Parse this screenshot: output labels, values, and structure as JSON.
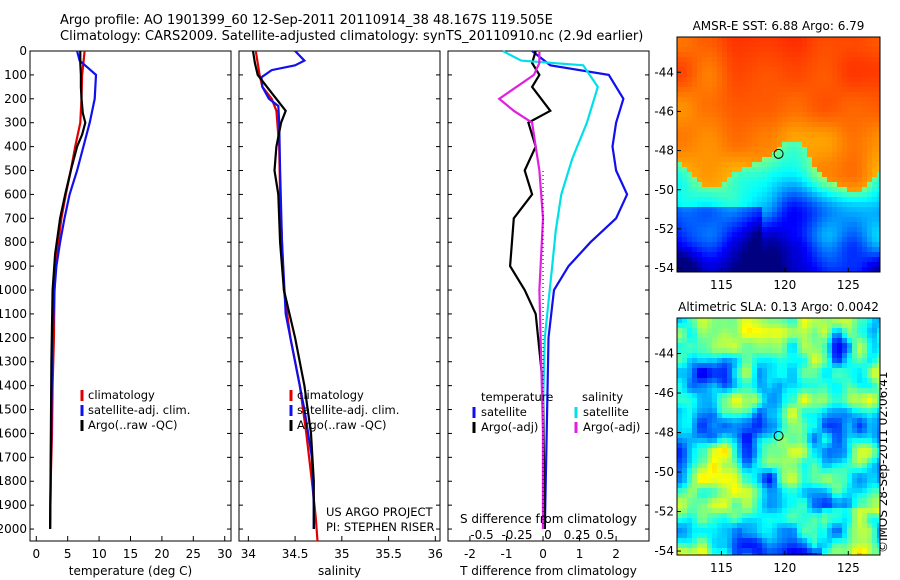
{
  "header": {
    "line1": "Argo profile: AO 1901399_60 12-Sep-2011 20110914_38 48.167S 119.505E",
    "line2": "Climatology: CARS2009. Satellite-adjusted climatology: synTS_20110910.nc (2.9d earlier)"
  },
  "credit": "©IMOS 28-Sep-2011 02:06:41",
  "colors": {
    "climatology": "#e00000",
    "satellite": "#1010ee",
    "argo": "#000000",
    "sal_satellite": "#00e0e8",
    "sal_argo": "#e020e0"
  },
  "chart_data": [
    {
      "type": "line",
      "xlabel": "temperature (deg C)",
      "xlim": [
        -1,
        31
      ],
      "xticks": [
        "0",
        "5",
        "10",
        "15",
        "20",
        "25",
        "30"
      ],
      "ylim": [
        2050,
        0
      ],
      "yticks": [
        "0",
        "100",
        "200",
        "300",
        "400",
        "500",
        "600",
        "700",
        "800",
        "900",
        "1000",
        "1100",
        "1200",
        "1300",
        "1400",
        "1500",
        "1600",
        "1700",
        "1800",
        "1900",
        "2000"
      ],
      "legend": {
        "placement": "lower-middle",
        "entries": [
          "climatology",
          "satellite-adj. clim.",
          "Argo(..raw -QC)"
        ]
      },
      "series": [
        {
          "name": "climatology",
          "color": "#e00000",
          "x": [
            7.7,
            7.5,
            7.3,
            7.2,
            7.0,
            6.2,
            5.5,
            4.7,
            4.0,
            3.5,
            3.1,
            2.9,
            2.8,
            2.6,
            2.5,
            2.3,
            2.2
          ],
          "y": [
            0,
            50,
            100,
            200,
            300,
            400,
            500,
            600,
            700,
            800,
            900,
            1000,
            1200,
            1400,
            1600,
            1800,
            2000
          ]
        },
        {
          "name": "satellite-adj. clim.",
          "color": "#1010ee",
          "x": [
            6.5,
            6.9,
            8.2,
            9.5,
            9.3,
            8.5,
            7.5,
            6.5,
            5.3,
            4.5,
            3.8,
            3.2,
            2.9,
            2.6,
            2.4,
            2.3,
            2.2
          ],
          "y": [
            0,
            40,
            70,
            100,
            200,
            300,
            400,
            500,
            600,
            700,
            800,
            900,
            1000,
            1200,
            1500,
            1800,
            2000
          ]
        },
        {
          "name": "Argo(..raw -QC)",
          "color": "#000000",
          "x": [
            7.0,
            7.0,
            7.1,
            7.1,
            7.2,
            7.4,
            7.8,
            7.3,
            6.5,
            5.5,
            4.6,
            3.8,
            3.0,
            2.6,
            2.4,
            2.3,
            2.2
          ],
          "y": [
            0,
            50,
            100,
            150,
            200,
            260,
            300,
            350,
            400,
            500,
            600,
            700,
            850,
            1000,
            1300,
            1700,
            2000
          ]
        }
      ]
    },
    {
      "type": "line",
      "xlabel": "salinity",
      "xlim": [
        33.9,
        36.05
      ],
      "xticks": [
        "34",
        "34.5",
        "35",
        "35.5",
        "36"
      ],
      "ylim": [
        2050,
        0
      ],
      "legend": {
        "placement": "lower-middle",
        "entries": [
          "climatology",
          "satellite-adj. clim.",
          "Argo(..raw -QC)"
        ]
      },
      "series": [
        {
          "name": "climatology",
          "color": "#e00000",
          "x": [
            34.08,
            34.1,
            34.12,
            34.15,
            34.25,
            34.3,
            34.33,
            34.34,
            34.36,
            34.38,
            34.45,
            34.55,
            34.62,
            34.68,
            34.72,
            34.74
          ],
          "y": [
            0,
            50,
            100,
            150,
            200,
            250,
            400,
            600,
            800,
            1000,
            1200,
            1400,
            1600,
            1800,
            1950,
            2050
          ]
        },
        {
          "name": "satellite-adj. clim.",
          "color": "#1010ee",
          "x": [
            34.5,
            34.6,
            34.5,
            34.25,
            34.14,
            34.15,
            34.22,
            34.32,
            34.33,
            34.34,
            34.36,
            34.4,
            34.5,
            34.6,
            34.68,
            34.7,
            34.7
          ],
          "y": [
            0,
            40,
            60,
            80,
            110,
            150,
            200,
            230,
            300,
            500,
            800,
            1100,
            1300,
            1500,
            1700,
            1900,
            2000
          ]
        },
        {
          "name": "Argo(..raw -QC)",
          "color": "#000000",
          "x": [
            34.05,
            34.07,
            34.1,
            34.2,
            34.4,
            34.35,
            34.3,
            34.28,
            34.32,
            34.34,
            34.38,
            34.5,
            34.6,
            34.67,
            34.7,
            34.7
          ],
          "y": [
            0,
            50,
            100,
            150,
            250,
            300,
            400,
            500,
            600,
            800,
            1000,
            1200,
            1400,
            1600,
            1800,
            2000
          ]
        }
      ],
      "annotations": [
        "US ARGO PROJECT",
        "PI: STEPHEN RISER"
      ]
    },
    {
      "type": "line",
      "xlabel": "T difference from climatology",
      "xlabel_top": "S difference from climatology",
      "xlim": [
        -2.6,
        2.9
      ],
      "xticks": [
        "-2",
        "-1",
        "0",
        "1",
        "2"
      ],
      "xticks_top": [
        "-0.5",
        "-0.25",
        "0",
        "0.25",
        "0.5"
      ],
      "ylim": [
        2050,
        0
      ],
      "legend": {
        "placement": "lower-middle",
        "headers": [
          "temperature",
          "salinity"
        ],
        "entries": [
          "satellite",
          "Argo(-adj)",
          "satellite",
          "Argo(-adj)"
        ]
      },
      "series": [
        {
          "name": "satellite",
          "group": "temperature",
          "color": "#1010ee",
          "x": [
            -0.3,
            0.2,
            1.8,
            2.2,
            2.0,
            1.9,
            2.0,
            2.3,
            2.0,
            1.3,
            0.7,
            0.3,
            0.15,
            0.1,
            0.05
          ],
          "y": [
            0,
            60,
            100,
            200,
            300,
            400,
            500,
            600,
            700,
            800,
            900,
            1000,
            1200,
            1600,
            2000
          ]
        },
        {
          "name": "Argo(-adj)",
          "group": "temperature",
          "color": "#000000",
          "x": [
            -0.2,
            -0.3,
            -0.1,
            -0.3,
            0.2,
            -0.4,
            -0.2,
            -0.5,
            -0.3,
            -0.8,
            -0.9,
            -0.5,
            -0.2,
            0.0,
            0.05
          ],
          "y": [
            0,
            50,
            100,
            150,
            250,
            300,
            400,
            500,
            600,
            700,
            900,
            1000,
            1100,
            1400,
            2000
          ]
        },
        {
          "name": "satellite",
          "group": "salinity",
          "color": "#00e0e8",
          "x": [
            -1.1,
            -0.6,
            1.1,
            1.5,
            1.2,
            0.8,
            0.5,
            0.35,
            0.25,
            0.15,
            0.05,
            0.0,
            0.0
          ],
          "y": [
            0,
            40,
            60,
            150,
            300,
            450,
            600,
            750,
            900,
            1050,
            1200,
            1500,
            2000
          ]
        },
        {
          "name": "Argo(-adj)",
          "group": "salinity",
          "color": "#e020e0",
          "x": [
            -0.1,
            -0.1,
            -0.25,
            -1.2,
            -0.8,
            -0.3,
            -0.2,
            -0.1,
            0.0,
            -0.1,
            -0.05,
            0.0,
            0.0
          ],
          "y": [
            0,
            50,
            100,
            200,
            250,
            300,
            400,
            500,
            700,
            1000,
            1300,
            1600,
            2000
          ]
        }
      ]
    },
    {
      "type": "heatmap",
      "title": "AMSR-E SST: 6.88 Argo: 6.79",
      "xlim": [
        111.5,
        127.5
      ],
      "ylim": [
        -54.2,
        -42.2
      ],
      "xticks": [
        "115",
        "120",
        "125"
      ],
      "yticks": [
        "-44",
        "-46",
        "-48",
        "-50",
        "-52",
        "-54"
      ],
      "marker": {
        "lon": 119.505,
        "lat": -48.167
      }
    },
    {
      "type": "heatmap",
      "title": "Altimetric SLA: 0.13 Argo: 0.0042",
      "xlim": [
        111.5,
        127.5
      ],
      "ylim": [
        -54.2,
        -42.2
      ],
      "xticks": [
        "115",
        "120",
        "125"
      ],
      "yticks": [
        "-44",
        "-46",
        "-48",
        "-50",
        "-52",
        "-54"
      ],
      "marker": {
        "lon": 119.505,
        "lat": -48.167
      }
    }
  ]
}
